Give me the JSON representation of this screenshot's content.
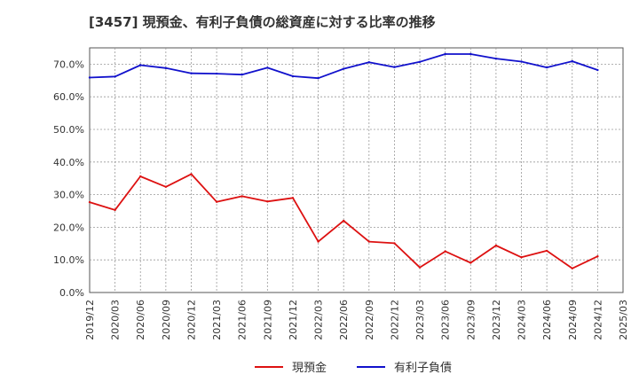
{
  "chart_data": {
    "type": "line",
    "title": "[3457]  現預金、有利子負債の総資産に対する比率の推移",
    "xlabel": "",
    "ylabel": "",
    "ylim": [
      0,
      75
    ],
    "yticks": [
      0,
      10,
      20,
      30,
      40,
      50,
      60,
      70
    ],
    "ytick_format": "{v}.0%",
    "x": [
      "2019/12",
      "2020/03",
      "2020/06",
      "2020/09",
      "2020/12",
      "2021/03",
      "2021/06",
      "2021/09",
      "2021/12",
      "2022/03",
      "2022/06",
      "2022/09",
      "2022/12",
      "2023/03",
      "2023/06",
      "2023/09",
      "2023/12",
      "2024/03",
      "2024/06",
      "2024/09",
      "2024/12",
      "2025/03"
    ],
    "grid": true,
    "legend_position": "bottom-center",
    "series": [
      {
        "name": "現預金",
        "color": "#dd1111",
        "values": [
          27.7,
          25.3,
          35.6,
          32.4,
          36.3,
          27.8,
          29.5,
          27.9,
          29.0,
          15.6,
          22.0,
          15.6,
          15.1,
          7.7,
          12.6,
          9.1,
          14.4,
          10.8,
          12.8,
          7.4,
          11.1,
          null
        ]
      },
      {
        "name": "有利子負債",
        "color": "#1111cc",
        "values": [
          65.9,
          66.2,
          69.7,
          68.8,
          67.2,
          67.1,
          66.8,
          68.9,
          66.3,
          65.7,
          68.6,
          70.6,
          69.1,
          70.7,
          73.1,
          73.1,
          71.7,
          70.8,
          69.0,
          70.9,
          68.2,
          null
        ]
      }
    ]
  }
}
